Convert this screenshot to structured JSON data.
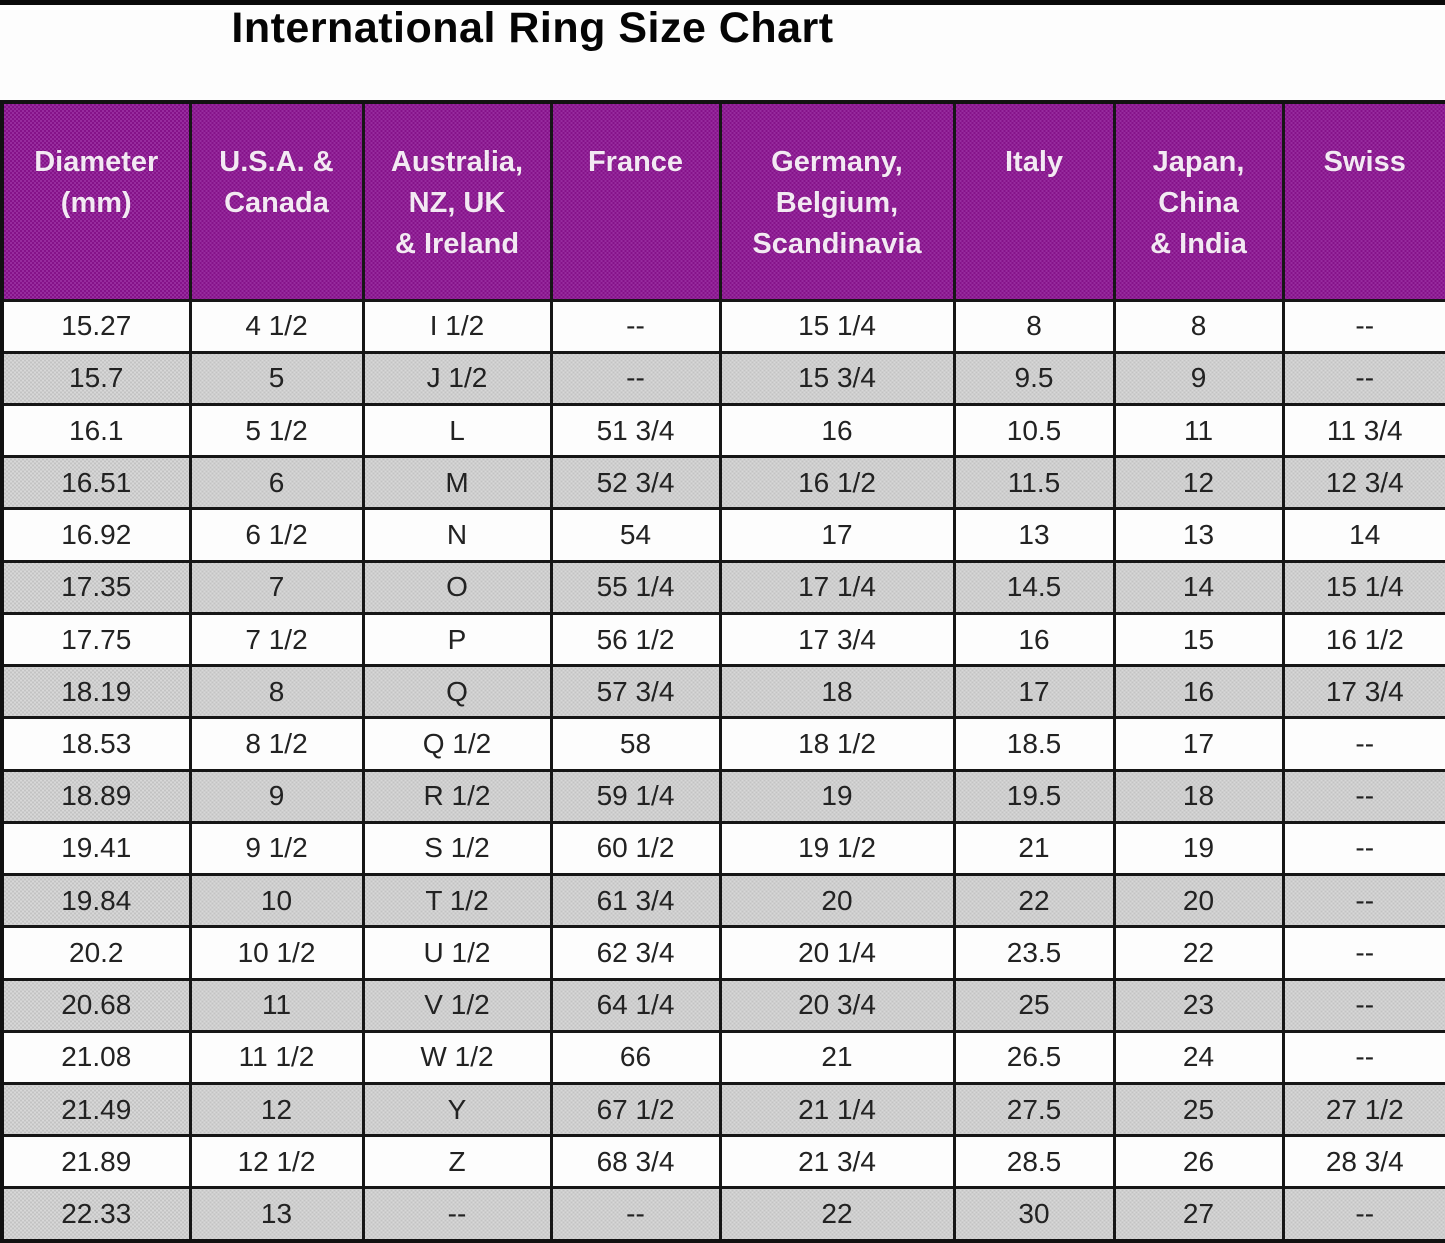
{
  "title": "International Ring Size Chart",
  "table": {
    "headers": [
      {
        "lines": [
          "Diameter",
          "(mm)"
        ]
      },
      {
        "lines": [
          "U.S.A. &",
          "Canada"
        ]
      },
      {
        "lines": [
          "Australia,",
          "NZ, UK",
          "& Ireland"
        ]
      },
      {
        "lines": [
          "France"
        ]
      },
      {
        "lines": [
          "Germany,",
          "Belgium,",
          "Scandinavia"
        ]
      },
      {
        "lines": [
          "Italy"
        ]
      },
      {
        "lines": [
          "Japan,",
          "China",
          "& India"
        ]
      },
      {
        "lines": [
          "Swiss"
        ]
      }
    ]
  },
  "colors": {
    "header_background": "#8b1b91",
    "header_text": "#f3e9f3",
    "row_alt_background": "#cbcbcb",
    "row_background": "#fdfdfd",
    "border": "#161616",
    "title_text": "#050505"
  },
  "chart_data": {
    "type": "table",
    "title": "International Ring Size Chart",
    "columns": [
      "Diameter (mm)",
      "U.S.A. & Canada",
      "Australia, NZ, UK & Ireland",
      "France",
      "Germany, Belgium, Scandinavia",
      "Italy",
      "Japan, China & India",
      "Swiss"
    ],
    "rows": [
      [
        "15.27",
        "4 1/2",
        "I 1/2",
        "--",
        "15 1/4",
        "8",
        "8",
        "--"
      ],
      [
        "15.7",
        "5",
        "J 1/2",
        "--",
        "15 3/4",
        "9.5",
        "9",
        "--"
      ],
      [
        "16.1",
        "5 1/2",
        "L",
        "51 3/4",
        "16",
        "10.5",
        "11",
        "11 3/4"
      ],
      [
        "16.51",
        "6",
        "M",
        "52 3/4",
        "16 1/2",
        "11.5",
        "12",
        "12 3/4"
      ],
      [
        "16.92",
        "6 1/2",
        "N",
        "54",
        "17",
        "13",
        "13",
        "14"
      ],
      [
        "17.35",
        "7",
        "O",
        "55 1/4",
        "17 1/4",
        "14.5",
        "14",
        "15 1/4"
      ],
      [
        "17.75",
        "7 1/2",
        "P",
        "56 1/2",
        "17 3/4",
        "16",
        "15",
        "16 1/2"
      ],
      [
        "18.19",
        "8",
        "Q",
        "57 3/4",
        "18",
        "17",
        "16",
        "17 3/4"
      ],
      [
        "18.53",
        "8 1/2",
        "Q 1/2",
        "58",
        "18 1/2",
        "18.5",
        "17",
        "--"
      ],
      [
        "18.89",
        "9",
        "R 1/2",
        "59 1/4",
        "19",
        "19.5",
        "18",
        "--"
      ],
      [
        "19.41",
        "9 1/2",
        "S 1/2",
        "60 1/2",
        "19 1/2",
        "21",
        "19",
        "--"
      ],
      [
        "19.84",
        "10",
        "T 1/2",
        "61 3/4",
        "20",
        "22",
        "20",
        "--"
      ],
      [
        "20.2",
        "10 1/2",
        "U 1/2",
        "62 3/4",
        "20 1/4",
        "23.5",
        "22",
        "--"
      ],
      [
        "20.68",
        "11",
        "V 1/2",
        "64 1/4",
        "20 3/4",
        "25",
        "23",
        "--"
      ],
      [
        "21.08",
        "11 1/2",
        "W 1/2",
        "66",
        "21",
        "26.5",
        "24",
        "--"
      ],
      [
        "21.49",
        "12",
        "Y",
        "67 1/2",
        "21 1/4",
        "27.5",
        "25",
        "27 1/2"
      ],
      [
        "21.89",
        "12 1/2",
        "Z",
        "68 3/4",
        "21 3/4",
        "28.5",
        "26",
        "28 3/4"
      ],
      [
        "22.33",
        "13",
        "--",
        "--",
        "22",
        "30",
        "27",
        "--"
      ]
    ],
    "layout": {
      "header_style": "purple background, white bold text",
      "row_striping": "odd rows white, even rows gray",
      "grid": true
    }
  }
}
